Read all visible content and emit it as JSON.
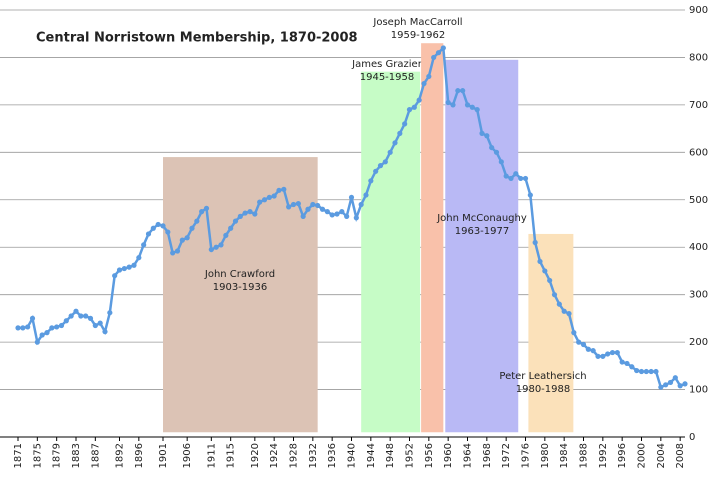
{
  "chart_data": {
    "type": "line",
    "title": "Central Norristown Membership, 1870-2008",
    "x": [
      1871,
      1872,
      1873,
      1874,
      1875,
      1876,
      1877,
      1878,
      1879,
      1880,
      1881,
      1882,
      1883,
      1884,
      1885,
      1886,
      1887,
      1888,
      1889,
      1890,
      1891,
      1892,
      1893,
      1894,
      1895,
      1896,
      1897,
      1898,
      1899,
      1900,
      1901,
      1902,
      1903,
      1904,
      1905,
      1906,
      1907,
      1908,
      1909,
      1910,
      1911,
      1912,
      1913,
      1914,
      1915,
      1916,
      1917,
      1918,
      1919,
      1920,
      1921,
      1922,
      1923,
      1924,
      1925,
      1926,
      1927,
      1928,
      1929,
      1930,
      1931,
      1932,
      1933,
      1934,
      1935,
      1936,
      1937,
      1938,
      1939,
      1940,
      1941,
      1942,
      1943,
      1944,
      1945,
      1946,
      1947,
      1948,
      1949,
      1950,
      1951,
      1952,
      1953,
      1954,
      1955,
      1956,
      1957,
      1958,
      1959,
      1960,
      1961,
      1962,
      1963,
      1964,
      1965,
      1966,
      1967,
      1968,
      1969,
      1970,
      1971,
      1972,
      1973,
      1974,
      1975,
      1976,
      1977,
      1978,
      1979,
      1980,
      1981,
      1982,
      1983,
      1984,
      1985,
      1986,
      1987,
      1988,
      1989,
      1990,
      1991,
      1992,
      1993,
      1994,
      1995,
      1996,
      1997,
      1998,
      1999,
      2000,
      2001,
      2002,
      2003,
      2004,
      2005,
      2006,
      2007,
      2008,
      2009
    ],
    "series": [
      {
        "name": "Membership",
        "color": "#5b9be0",
        "values": [
          230,
          230,
          232,
          250,
          200,
          215,
          220,
          230,
          232,
          235,
          245,
          255,
          265,
          255,
          255,
          250,
          235,
          240,
          222,
          262,
          340,
          352,
          355,
          358,
          362,
          378,
          405,
          428,
          440,
          448,
          445,
          432,
          388,
          392,
          415,
          420,
          440,
          455,
          475,
          482,
          395,
          400,
          405,
          425,
          440,
          455,
          465,
          472,
          475,
          470,
          495,
          500,
          505,
          508,
          520,
          522,
          485,
          490,
          492,
          465,
          480,
          490,
          488,
          480,
          475,
          468,
          470,
          475,
          465,
          505,
          462,
          490,
          510,
          540,
          560,
          572,
          580,
          600,
          620,
          640,
          660,
          690,
          695,
          710,
          745,
          760,
          800,
          810,
          820,
          705,
          700,
          730,
          730,
          700,
          695,
          690,
          640,
          635,
          610,
          600,
          580,
          550,
          545,
          555,
          545,
          545,
          510,
          410,
          370,
          350,
          330,
          300,
          280,
          265,
          260,
          220,
          200,
          195,
          185,
          182,
          170,
          170,
          175,
          178,
          178,
          158,
          155,
          148,
          140,
          138,
          138,
          138,
          138,
          105,
          110,
          115,
          125,
          108,
          112
        ]
      }
    ],
    "xlim": [
      1871,
      2009
    ],
    "xticks": [
      1871,
      1875,
      1879,
      1883,
      1887,
      1892,
      1896,
      1901,
      1906,
      1911,
      1915,
      1920,
      1924,
      1928,
      1932,
      1936,
      1940,
      1944,
      1948,
      1952,
      1956,
      1960,
      1964,
      1968,
      1972,
      1976,
      1980,
      1984,
      1988,
      1992,
      1996,
      2000,
      2004,
      2008
    ],
    "ylim": [
      0,
      900
    ],
    "yticks": [
      0,
      100,
      200,
      300,
      400,
      500,
      600,
      700,
      800,
      900
    ],
    "grid": true,
    "bands": [
      {
        "label": [
          "John Crawford",
          "1903-1936"
        ],
        "x": [
          1901,
          1933
        ],
        "y": [
          10,
          590
        ],
        "color": "#dcc3b5"
      },
      {
        "label": [
          "James Grazier",
          "1945-1958"
        ],
        "x": [
          1942,
          1954.2
        ],
        "y": [
          10,
          770
        ],
        "color": "#c6fcc6"
      },
      {
        "label": [
          "Joseph MacCarroll",
          "1959-1962"
        ],
        "x": [
          1954.4,
          1959
        ],
        "y": [
          10,
          830
        ],
        "color": "#f9c1aa"
      },
      {
        "label": [
          "John McConaughy",
          "1963-1977"
        ],
        "x": [
          1959.4,
          1974.5
        ],
        "y": [
          10,
          795
        ],
        "color": "#b9b9f5"
      },
      {
        "label": [
          "Peter Leathersich",
          "1980-1988"
        ],
        "x": [
          1976.6,
          1985.9
        ],
        "y": [
          10,
          428
        ],
        "color": "#fbe1ba"
      }
    ]
  }
}
